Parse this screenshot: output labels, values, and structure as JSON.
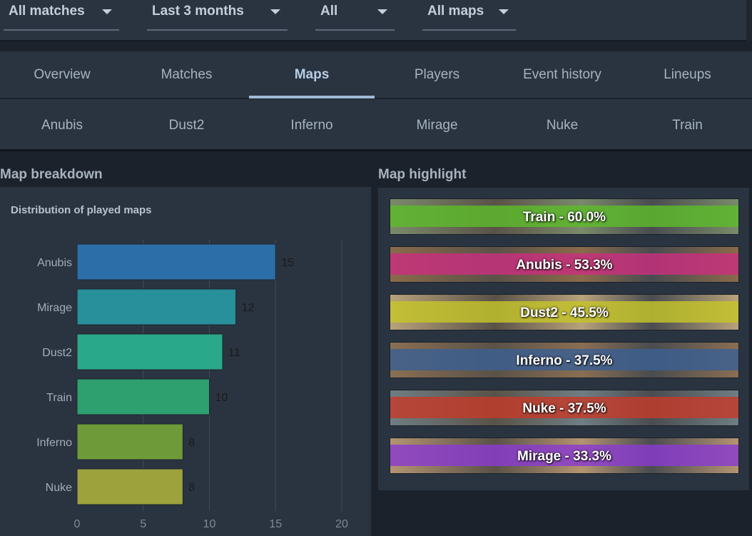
{
  "filters": [
    {
      "label": "All matches"
    },
    {
      "label": "Last 3 months"
    },
    {
      "label": "All"
    },
    {
      "label": "All maps"
    }
  ],
  "tabs": [
    {
      "label": "Overview",
      "active": false
    },
    {
      "label": "Matches",
      "active": false
    },
    {
      "label": "Maps",
      "active": true
    },
    {
      "label": "Players",
      "active": false
    },
    {
      "label": "Event history",
      "active": false
    },
    {
      "label": "Lineups",
      "active": false
    }
  ],
  "map_tabs": [
    "Anubis",
    "Dust2",
    "Inferno",
    "Mirage",
    "Nuke",
    "Train"
  ],
  "sections": {
    "breakdown_title": "Map breakdown",
    "highlight_title": "Map highlight"
  },
  "chart_data": {
    "type": "bar",
    "orientation": "horizontal",
    "title": "Distribution of played maps",
    "categories": [
      "Anubis",
      "Mirage",
      "Dust2",
      "Train",
      "Inferno",
      "Nuke"
    ],
    "values": [
      15,
      12,
      11,
      10,
      8,
      8
    ],
    "xlim": [
      0,
      20
    ],
    "xticks": [
      0,
      5,
      10,
      15,
      20
    ],
    "grid": true,
    "colors": [
      "#2c6fa8",
      "#27909a",
      "#2aa88a",
      "#2ea070",
      "#6f9a3a",
      "#9ea23c"
    ]
  },
  "highlights": [
    {
      "label": "Train - 60.0%",
      "band": "#5dbb2b",
      "bg": "#7a8a6a"
    },
    {
      "label": "Anubis - 53.3%",
      "band": "#c92e7f",
      "bg": "#8a6a4a"
    },
    {
      "label": "Dust2 - 45.5%",
      "band": "#c4c42a",
      "bg": "#b8a27a"
    },
    {
      "label": "Inferno - 37.5%",
      "band": "#3a5f93",
      "bg": "#8a6e52"
    },
    {
      "label": "Nuke - 37.5%",
      "band": "#c43a2a",
      "bg": "#6e7e84"
    },
    {
      "label": "Mirage - 33.3%",
      "band": "#8a3ad0",
      "bg": "#b49470"
    }
  ]
}
